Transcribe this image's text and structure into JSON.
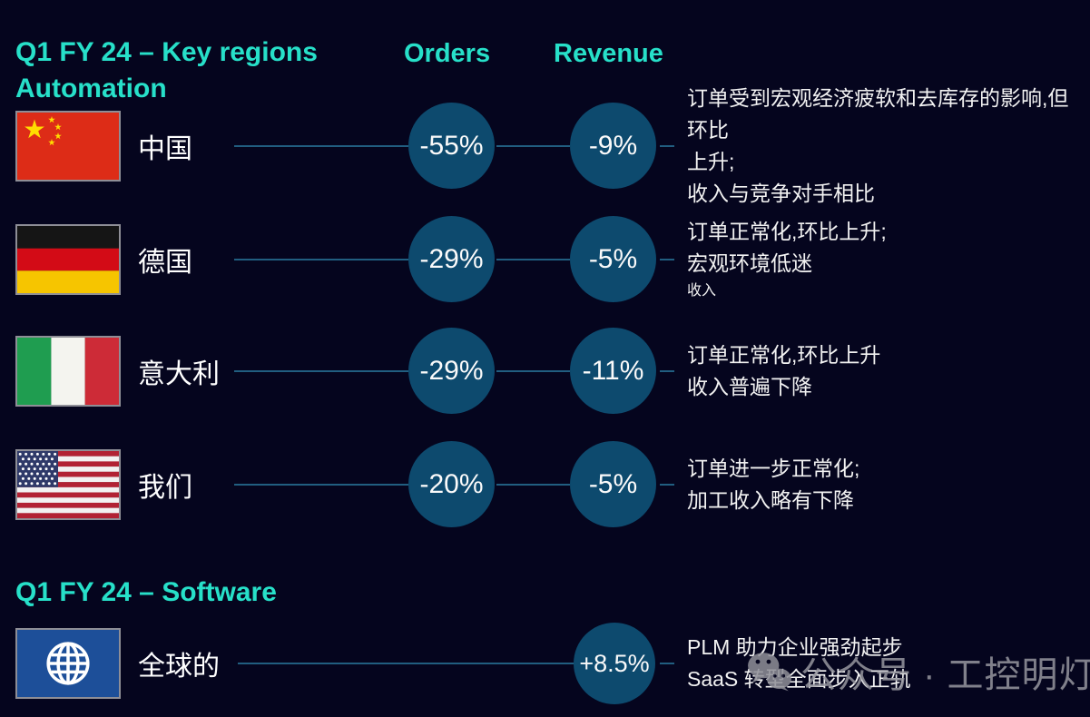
{
  "colors": {
    "page_bg": "#05051e",
    "accent": "#27e0c9",
    "circle_fill": "#0d4a6e",
    "connector_line": "#215e80",
    "text": "#f2f2f2",
    "watermark": "#96969e",
    "globe_tile": "#1d4f99"
  },
  "chart_data": {
    "type": "table",
    "title": "Q1 FY 24 – Key regions Automation",
    "columns": [
      "Region",
      "Orders",
      "Revenue"
    ],
    "rows": [
      [
        "中国",
        "-55%",
        "-9%"
      ],
      [
        "德国",
        "-29%",
        "-5%"
      ],
      [
        "意大利",
        "-29%",
        "-11%"
      ],
      [
        "我们",
        "-20%",
        "-5%"
      ]
    ],
    "software_section": {
      "title": "Q1 FY 24 – Software",
      "rows": [
        [
          "全球的",
          null,
          "+8.5%"
        ]
      ]
    }
  },
  "header": {
    "title_line1": "Q1 FY 24 – Key regions",
    "title_line2": "Automation",
    "orders_label": "Orders",
    "revenue_label": "Revenue"
  },
  "automation_rows": [
    {
      "flag": "china-flag",
      "label": "中国",
      "orders": "-55%",
      "revenue": "-9%",
      "notes": [
        "订单受到宏观经济疲软和去库存的影响,但环比",
        "上升;",
        "收入与竞争对手相比"
      ]
    },
    {
      "flag": "germany-flag",
      "label": "德国",
      "orders": "-29%",
      "revenue": "-5%",
      "notes": [
        "订单正常化,环比上升;",
        "宏观环境低迷"
      ],
      "note_small": "收入"
    },
    {
      "flag": "italy-flag",
      "label": "意大利",
      "orders": "-29%",
      "revenue": "-11%",
      "notes": [
        "订单正常化,环比上升",
        "收入普遍下降"
      ]
    },
    {
      "flag": "us-flag",
      "label": "我们",
      "orders": "-20%",
      "revenue": "-5%",
      "notes": [
        "订单进一步正常化;",
        "加工收入略有下降"
      ]
    }
  ],
  "software": {
    "title": "Q1 FY 24 – Software",
    "label": "全球的",
    "revenue": "+8.5%",
    "notes": [
      "PLM 助力企业强劲起步",
      "SaaS 转型全面步入正轨"
    ]
  },
  "watermark": {
    "text": "公众号 · 工控明灯"
  }
}
